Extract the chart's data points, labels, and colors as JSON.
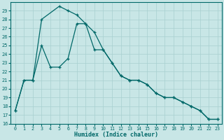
{
  "xlabel": "Humidex (Indice chaleur)",
  "background_color": "#c8e6e6",
  "grid_color": "#a8d0d0",
  "line_color": "#006868",
  "xlim": [
    -0.5,
    23.5
  ],
  "ylim": [
    16,
    30
  ],
  "yticks": [
    16,
    17,
    18,
    19,
    20,
    21,
    22,
    23,
    24,
    25,
    26,
    27,
    28,
    29
  ],
  "xticks": [
    0,
    1,
    2,
    3,
    4,
    5,
    6,
    7,
    8,
    9,
    10,
    11,
    12,
    13,
    14,
    15,
    16,
    17,
    18,
    19,
    20,
    21,
    22,
    23
  ],
  "line1_x": [
    0,
    1,
    2,
    3,
    5,
    6,
    7,
    8,
    9,
    10,
    11,
    12,
    13,
    14,
    15,
    16,
    17,
    18,
    19,
    20,
    21,
    22,
    23
  ],
  "line1_y": [
    17.5,
    21.0,
    21.0,
    28.0,
    29.5,
    29.0,
    28.5,
    27.5,
    26.5,
    24.5,
    23.0,
    21.5,
    21.0,
    21.0,
    20.5,
    19.5,
    19.0,
    19.0,
    18.5,
    18.0,
    17.5,
    16.5,
    16.5
  ],
  "line2_x": [
    0,
    1,
    2,
    3,
    4,
    5,
    6,
    7,
    8,
    9,
    10,
    11,
    12,
    13,
    14,
    15,
    16,
    17,
    18,
    19,
    20,
    21,
    22,
    23
  ],
  "line2_y": [
    17.5,
    21.0,
    21.0,
    25.0,
    22.5,
    22.5,
    23.5,
    27.5,
    27.5,
    24.5,
    24.5,
    23.0,
    21.5,
    21.0,
    21.0,
    20.5,
    19.5,
    19.0,
    19.0,
    18.5,
    18.0,
    17.5,
    16.5,
    16.5
  ],
  "label_fontsize": 5.5,
  "xlabel_fontsize": 6.0,
  "tick_fontsize": 4.8
}
